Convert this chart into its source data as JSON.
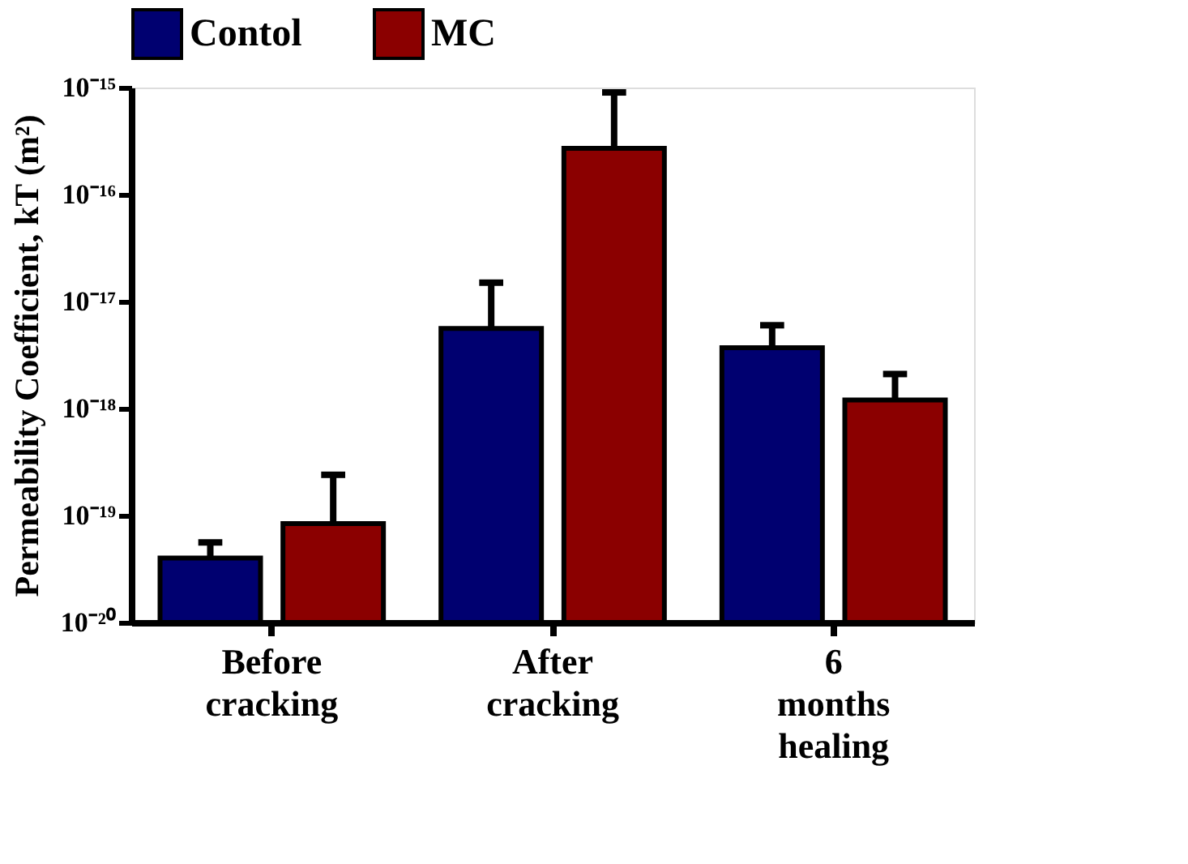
{
  "chart_data": {
    "type": "bar",
    "categories": [
      "Before cracking",
      "After cracking",
      "6 months healing"
    ],
    "ylabel": "Permeability Coefficient, kT (m²)",
    "log": "y",
    "ylim": [
      1e-20,
      1e-15
    ],
    "yticks": [
      {
        "value": 1e-20,
        "label": "10⁻²⁰"
      },
      {
        "value": 1e-19,
        "label": "10⁻¹⁹"
      },
      {
        "value": 1e-18,
        "label": "10⁻¹⁸"
      },
      {
        "value": 1e-17,
        "label": "10⁻¹⁷"
      },
      {
        "value": 1e-16,
        "label": "10⁻¹⁶"
      },
      {
        "value": 1e-15,
        "label": "10⁻¹⁵"
      }
    ],
    "legend": "top",
    "grid": false,
    "series": [
      {
        "name": "Contol",
        "color": "#000070",
        "values": [
          4e-20,
          5.6e-18,
          3.7e-18
        ],
        "errors": [
          [
            4e-20,
            5.6e-20
          ],
          [
            5.6e-18,
            1.5e-17
          ],
          [
            3.7e-18,
            6e-18
          ]
        ]
      },
      {
        "name": "MC",
        "color": "#8b0000",
        "values": [
          8.4e-20,
          2.7e-16,
          1.2e-18
        ],
        "errors": [
          [
            8.4e-20,
            2.4e-19
          ],
          [
            2.7e-16,
            9e-16
          ],
          [
            1.2e-18,
            2.1e-18
          ]
        ]
      }
    ]
  }
}
